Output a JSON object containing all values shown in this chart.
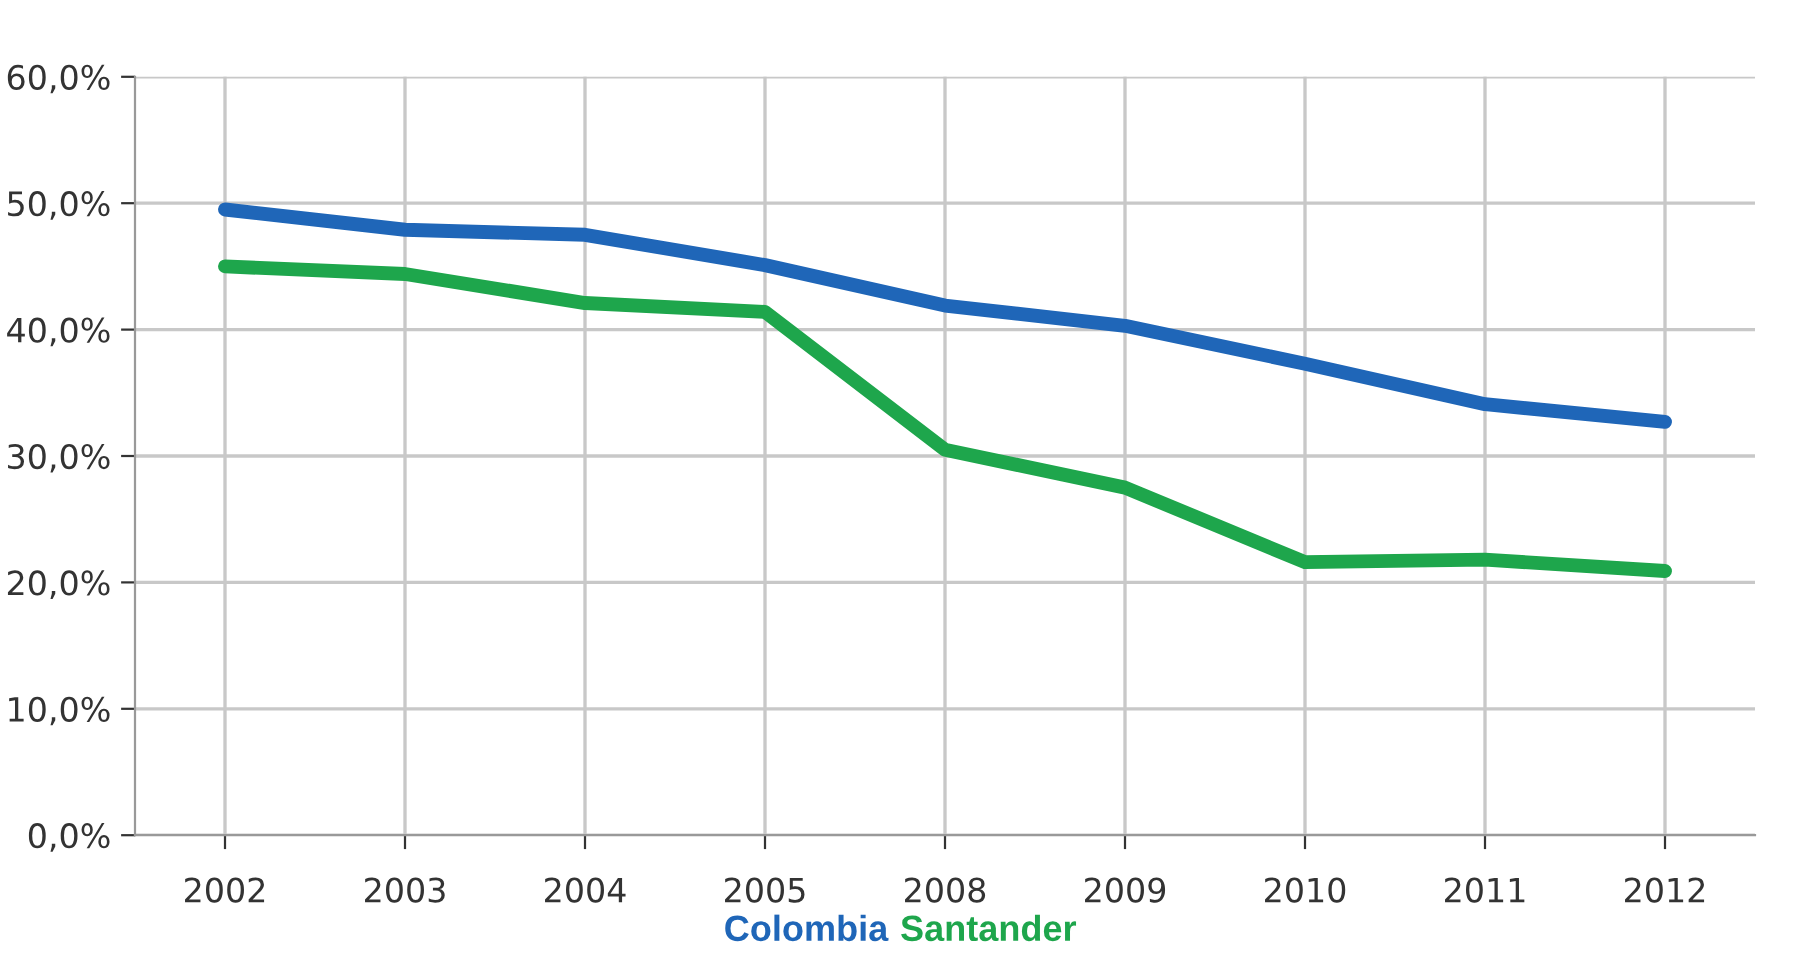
{
  "chart_data": {
    "type": "line",
    "categories": [
      "2002",
      "2003",
      "2004",
      "2005",
      "2008",
      "2009",
      "2010",
      "2011",
      "2012"
    ],
    "series": [
      {
        "name": "Colombia",
        "color": "#1f66b8",
        "values": [
          49.5,
          47.9,
          47.5,
          45.1,
          41.9,
          40.3,
          37.3,
          34.1,
          32.7
        ]
      },
      {
        "name": "Santander",
        "color": "#1ea64c",
        "values": [
          45.0,
          44.4,
          42.1,
          41.4,
          30.5,
          27.5,
          21.6,
          21.8,
          20.9
        ]
      }
    ],
    "ylim": [
      0,
      60
    ],
    "yticks": [
      {
        "value": 0,
        "label": "0,0%"
      },
      {
        "value": 10,
        "label": "10,0%"
      },
      {
        "value": 20,
        "label": "20,0%"
      },
      {
        "value": 30,
        "label": "30,0%"
      },
      {
        "value": 40,
        "label": "40,0%"
      },
      {
        "value": 50,
        "label": "50,0%"
      },
      {
        "value": 60,
        "label": "60,0%"
      }
    ],
    "grid": true,
    "legend": "bottom",
    "marker": "none",
    "line_style": "solid"
  }
}
